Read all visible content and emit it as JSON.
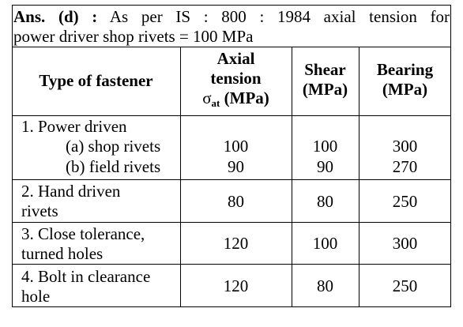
{
  "answer": {
    "prefix": "Ans. (d) :",
    "line1_rest": "As per IS : 800 : 1984 axial tension for",
    "line2": "power driver shop rivets = 100 MPa"
  },
  "table": {
    "headers": {
      "type": "Type of fastener",
      "axial_l1": "Axial",
      "axial_l2": "tension",
      "axial_sigma": "σ",
      "axial_sub": "at",
      "axial_unit": " (MPa)",
      "shear_l1": "Shear",
      "shear_l2": "(MPa)",
      "bearing_l1": "Bearing",
      "bearing_l2": "(MPa)"
    },
    "rows": [
      {
        "label_l1": "1. Power driven",
        "sub": [
          {
            "label": "(a) shop rivets",
            "axial": "100",
            "shear": "100",
            "bearing": "300"
          },
          {
            "label": "(b) field rivets",
            "axial": "90",
            "shear": "90",
            "bearing": "270"
          }
        ]
      },
      {
        "label_l1": "2. Hand driven",
        "label_l2": "rivets",
        "axial": "80",
        "shear": "80",
        "bearing": "250"
      },
      {
        "label_l1": "3. Close tolerance,",
        "label_l2": "turned holes",
        "axial": "120",
        "shear": "100",
        "bearing": "300"
      },
      {
        "label_l1": "4. Bolt in clearance",
        "label_l2": "hole",
        "axial": "120",
        "shear": "80",
        "bearing": "250"
      }
    ]
  }
}
